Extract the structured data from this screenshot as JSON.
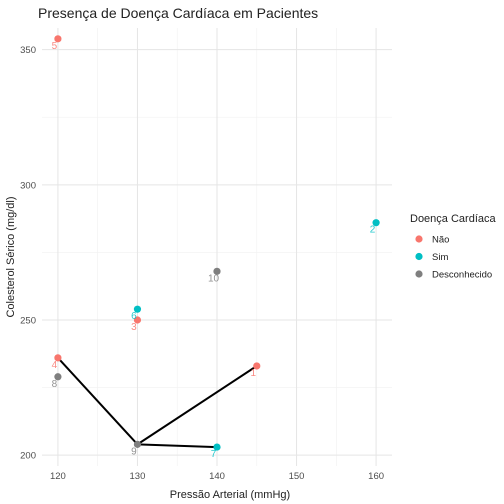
{
  "chart_data": {
    "type": "scatter",
    "title": "Presença de Doença Cardíaca em Pacientes",
    "xlabel": "Pressão Arterial (mmHg)",
    "ylabel": "Colesterol Sérico (mg/dl)",
    "xlim": [
      118,
      162
    ],
    "ylim": [
      196,
      358
    ],
    "x_ticks": [
      120,
      130,
      140,
      150,
      160
    ],
    "y_ticks": [
      200,
      250,
      300,
      350
    ],
    "grid": true,
    "legend": {
      "title": "Doença Cardíaca",
      "position": "right",
      "entries": [
        {
          "name": "Não",
          "color": "#F8766D"
        },
        {
          "name": "Sim",
          "color": "#00BFC4"
        },
        {
          "name": "Desconhecido",
          "color": "#7F7F7F"
        }
      ]
    },
    "points": [
      {
        "id": "1",
        "x": 145,
        "y": 233,
        "group": "Não"
      },
      {
        "id": "2",
        "x": 160,
        "y": 286,
        "group": "Sim"
      },
      {
        "id": "3",
        "x": 130,
        "y": 250,
        "group": "Não"
      },
      {
        "id": "4",
        "x": 120,
        "y": 236,
        "group": "Não"
      },
      {
        "id": "5",
        "x": 120,
        "y": 354,
        "group": "Não"
      },
      {
        "id": "6",
        "x": 130,
        "y": 254,
        "group": "Sim"
      },
      {
        "id": "7",
        "x": 140,
        "y": 203,
        "group": "Sim"
      },
      {
        "id": "8",
        "x": 120,
        "y": 229,
        "group": "Desconhecido"
      },
      {
        "id": "9",
        "x": 130,
        "y": 204,
        "group": "Desconhecido"
      },
      {
        "id": "10",
        "x": 140,
        "y": 268,
        "group": "Desconhecido"
      }
    ],
    "connector": {
      "color": "#000000",
      "segments": [
        [
          [
            120,
            236
          ],
          [
            130,
            204
          ]
        ],
        [
          [
            130,
            204
          ],
          [
            145,
            233
          ]
        ],
        [
          [
            130,
            204
          ],
          [
            140,
            203
          ]
        ]
      ]
    }
  }
}
